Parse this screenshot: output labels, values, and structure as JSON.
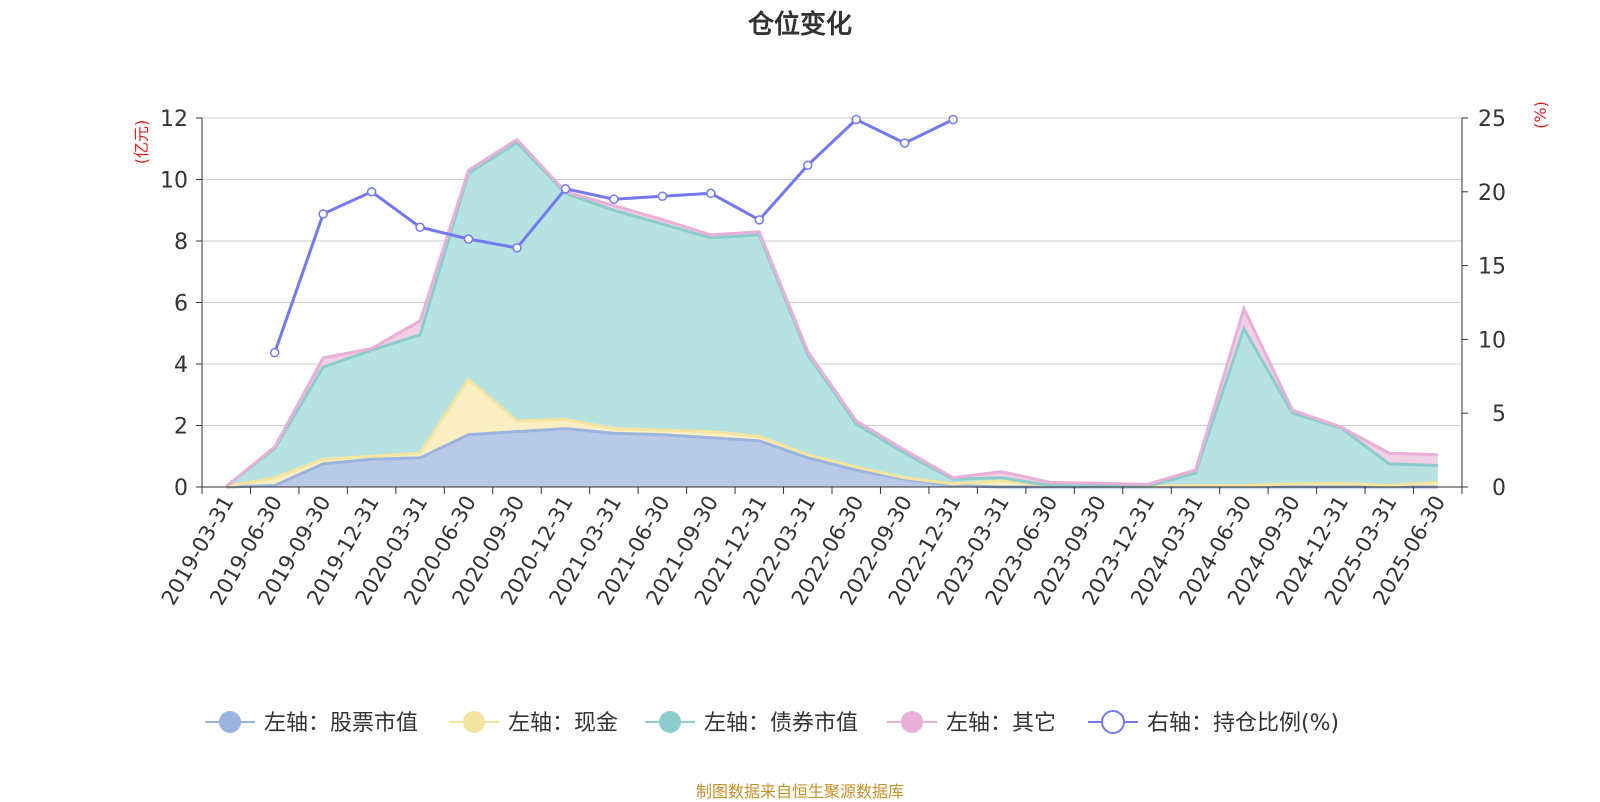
{
  "chart_data": {
    "type": "area",
    "title": "仓位变化",
    "y_left_unit": "(亿元)",
    "y_right_unit": "(%)",
    "ylim_left": [
      0,
      12
    ],
    "ylim_right": [
      0,
      25
    ],
    "y_left_ticks": [
      0,
      2,
      4,
      6,
      8,
      10,
      12
    ],
    "y_right_ticks": [
      0,
      5,
      10,
      15,
      20,
      25
    ],
    "grid": true,
    "legend_position": "bottom",
    "source_note": "制图数据来自恒生聚源数据库",
    "categories": [
      "2019-03-31",
      "2019-06-30",
      "2019-09-30",
      "2019-12-31",
      "2020-03-31",
      "2020-06-30",
      "2020-09-30",
      "2020-12-31",
      "2021-03-31",
      "2021-06-30",
      "2021-09-30",
      "2021-12-31",
      "2022-03-31",
      "2022-06-30",
      "2022-09-30",
      "2022-12-31",
      "2023-03-31",
      "2023-06-30",
      "2023-09-30",
      "2023-12-31",
      "2024-03-31",
      "2024-06-30",
      "2024-09-30",
      "2024-12-31",
      "2025-03-31",
      "2025-06-30"
    ],
    "series": [
      {
        "name": "左轴：股票市值",
        "axis": "left",
        "color": "#9bb3df",
        "fill": "#b5c7e8",
        "values": [
          0,
          0.05,
          0.75,
          0.9,
          0.95,
          1.7,
          1.8,
          1.9,
          1.75,
          1.7,
          1.6,
          1.5,
          0.95,
          0.55,
          0.25,
          0.05,
          0,
          0,
          0,
          0,
          0,
          0,
          0,
          0,
          0,
          0
        ]
      },
      {
        "name": "左轴：现金",
        "axis": "left",
        "color": "#f5e4a0",
        "fill": "#faeec0",
        "values": [
          0.02,
          0.25,
          0.15,
          0.1,
          0.15,
          1.8,
          0.35,
          0.3,
          0.15,
          0.15,
          0.2,
          0.15,
          0.1,
          0.1,
          0.05,
          0.05,
          0.2,
          0.05,
          0.03,
          0.02,
          0.05,
          0.05,
          0.1,
          0.12,
          0.05,
          0.15
        ]
      },
      {
        "name": "左轴：债券市值",
        "axis": "left",
        "color": "#8ccccc",
        "fill": "#b3e0e0",
        "values": [
          0,
          0.95,
          3.0,
          3.45,
          3.85,
          6.7,
          9.05,
          7.35,
          7.1,
          6.7,
          6.3,
          6.55,
          3.25,
          1.4,
          0.8,
          0.15,
          0.1,
          0,
          0,
          0,
          0.4,
          5.1,
          2.3,
          1.8,
          0.7,
          0.55
        ]
      },
      {
        "name": "左轴：其它",
        "axis": "left",
        "color": "#e8b0d8",
        "fill": "#f0cce4",
        "values": [
          0,
          0.05,
          0.3,
          0.05,
          0.45,
          0.1,
          0.1,
          0.05,
          0.15,
          0.15,
          0.1,
          0.1,
          0.1,
          0.1,
          0.1,
          0.05,
          0.2,
          0.1,
          0.09,
          0.06,
          0.1,
          0.65,
          0.1,
          0.03,
          0.35,
          0.35
        ]
      },
      {
        "name": "右轴：持仓比例(%)",
        "axis": "right",
        "color": "#7479f0",
        "values": [
          null,
          9.1,
          18.5,
          20,
          17.6,
          16.8,
          16.2,
          20.2,
          19.5,
          19.7,
          19.9,
          18.1,
          21.8,
          24.9,
          23.3,
          24.9,
          null,
          null,
          null,
          null,
          null,
          null,
          null,
          null,
          null,
          null
        ]
      }
    ]
  }
}
